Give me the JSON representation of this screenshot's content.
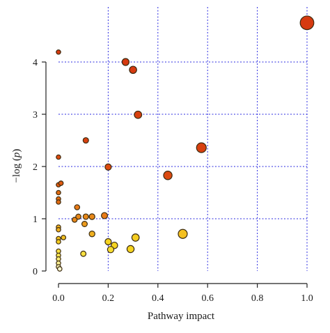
{
  "chart_data": {
    "type": "scatter",
    "xlabel": "Pathway impact",
    "ylabel_main": "−log (",
    "ylabel_var": "p",
    "ylabel_close": ")",
    "xlim": [
      0.0,
      1.0
    ],
    "ylim": [
      0.0,
      4.8
    ],
    "xticks": [
      0.0,
      0.2,
      0.4,
      0.6,
      0.8,
      1.0
    ],
    "xtick_labels": [
      "0.0",
      "0.2",
      "0.4",
      "0.6",
      "0.8",
      "1.0"
    ],
    "yticks": [
      0,
      1,
      2,
      3,
      4
    ],
    "ytick_labels": [
      "0",
      "1",
      "2",
      "3",
      "4"
    ],
    "grid": true,
    "grid_color": "#2a2ae0",
    "size_encoding": "pathway impact",
    "color_scale": [
      "#fffde0",
      "#f5d800",
      "#f0a000",
      "#e06010",
      "#d02a00"
    ],
    "points": [
      {
        "x": 1.0,
        "y": 4.75,
        "color": "#d63a10"
      },
      {
        "x": 0.27,
        "y": 4.0,
        "color": "#d63a10"
      },
      {
        "x": 0.3,
        "y": 3.85,
        "color": "#d63a10"
      },
      {
        "x": 0.32,
        "y": 2.99,
        "color": "#d8400f"
      },
      {
        "x": 0.575,
        "y": 2.36,
        "color": "#d8400f"
      },
      {
        "x": 0.11,
        "y": 2.5,
        "color": "#d8400f"
      },
      {
        "x": 0.2,
        "y": 1.99,
        "color": "#dc4a10"
      },
      {
        "x": 0.44,
        "y": 1.83,
        "color": "#dc4a10"
      },
      {
        "x": 0.0,
        "y": 4.19,
        "color": "#d63a10"
      },
      {
        "x": 0.0,
        "y": 2.18,
        "color": "#dc4a10"
      },
      {
        "x": 0.0,
        "y": 1.65,
        "color": "#e05a10"
      },
      {
        "x": 0.01,
        "y": 1.68,
        "color": "#e05a10"
      },
      {
        "x": 0.0,
        "y": 1.5,
        "color": "#e06a10"
      },
      {
        "x": 0.0,
        "y": 1.38,
        "color": "#e06a10"
      },
      {
        "x": 0.0,
        "y": 1.32,
        "color": "#e06a10"
      },
      {
        "x": 0.075,
        "y": 1.22,
        "color": "#e87a18"
      },
      {
        "x": 0.185,
        "y": 1.06,
        "color": "#e87a18"
      },
      {
        "x": 0.065,
        "y": 0.98,
        "color": "#e8881a"
      },
      {
        "x": 0.08,
        "y": 1.04,
        "color": "#e8881a"
      },
      {
        "x": 0.11,
        "y": 1.04,
        "color": "#e8881a"
      },
      {
        "x": 0.135,
        "y": 1.04,
        "color": "#e8881a"
      },
      {
        "x": 0.105,
        "y": 0.9,
        "color": "#ec9a1c"
      },
      {
        "x": 0.135,
        "y": 0.71,
        "color": "#f0b020"
      },
      {
        "x": 0.0,
        "y": 0.84,
        "color": "#f0b020"
      },
      {
        "x": 0.0,
        "y": 0.79,
        "color": "#f0b020"
      },
      {
        "x": 0.0,
        "y": 0.62,
        "color": "#f2c020"
      },
      {
        "x": 0.02,
        "y": 0.64,
        "color": "#f2c020"
      },
      {
        "x": 0.0,
        "y": 0.56,
        "color": "#f4cc20"
      },
      {
        "x": 0.31,
        "y": 0.64,
        "color": "#f4cc20"
      },
      {
        "x": 0.5,
        "y": 0.71,
        "color": "#f4c020"
      },
      {
        "x": 0.2,
        "y": 0.56,
        "color": "#f6d420"
      },
      {
        "x": 0.225,
        "y": 0.49,
        "color": "#f6d420"
      },
      {
        "x": 0.21,
        "y": 0.41,
        "color": "#f6dc30"
      },
      {
        "x": 0.29,
        "y": 0.42,
        "color": "#f6d420"
      },
      {
        "x": 0.1,
        "y": 0.33,
        "color": "#f8e040"
      },
      {
        "x": 0.0,
        "y": 0.38,
        "color": "#f8e040"
      },
      {
        "x": 0.0,
        "y": 0.3,
        "color": "#f8e450"
      },
      {
        "x": 0.0,
        "y": 0.23,
        "color": "#faea70"
      },
      {
        "x": 0.0,
        "y": 0.15,
        "color": "#faee90"
      },
      {
        "x": 0.0,
        "y": 0.08,
        "color": "#fcf4b0"
      },
      {
        "x": 0.005,
        "y": 0.04,
        "color": "#fdf8d0"
      }
    ]
  }
}
